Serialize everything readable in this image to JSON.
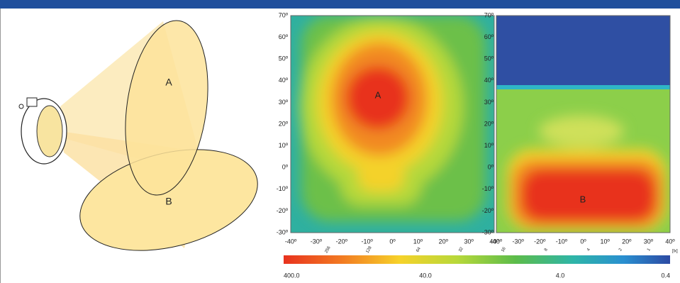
{
  "illustration": {
    "beam_a": "A",
    "beam_b": "B"
  },
  "heatmaps": [
    {
      "label": "A",
      "yticks": [
        "70º",
        "60º",
        "50º",
        "40º",
        "30º",
        "20º",
        "10º",
        "0º",
        "-10º",
        "-20º",
        "-30º"
      ],
      "xticks": [
        "-40º",
        "-30º",
        "-20º",
        "-10º",
        "0º",
        "10º",
        "20º",
        "30º",
        "40º"
      ]
    },
    {
      "label": "B",
      "yticks": [
        "70º",
        "60º",
        "50º",
        "40º",
        "30º",
        "20º",
        "10º",
        "0º",
        "-10º",
        "-20º",
        "-30º"
      ],
      "xticks": [
        "-40º",
        "-30º",
        "-20º",
        "-10º",
        "0º",
        "10º",
        "20º",
        "30º",
        "40º"
      ]
    }
  ],
  "colorbar": {
    "ticks": [
      "256",
      "128",
      "64",
      "32",
      "16",
      "8",
      "4",
      "2",
      "1"
    ],
    "unit": "[lx]",
    "labels": [
      "400.0",
      "40.0",
      "4.0",
      "0.4"
    ]
  }
}
